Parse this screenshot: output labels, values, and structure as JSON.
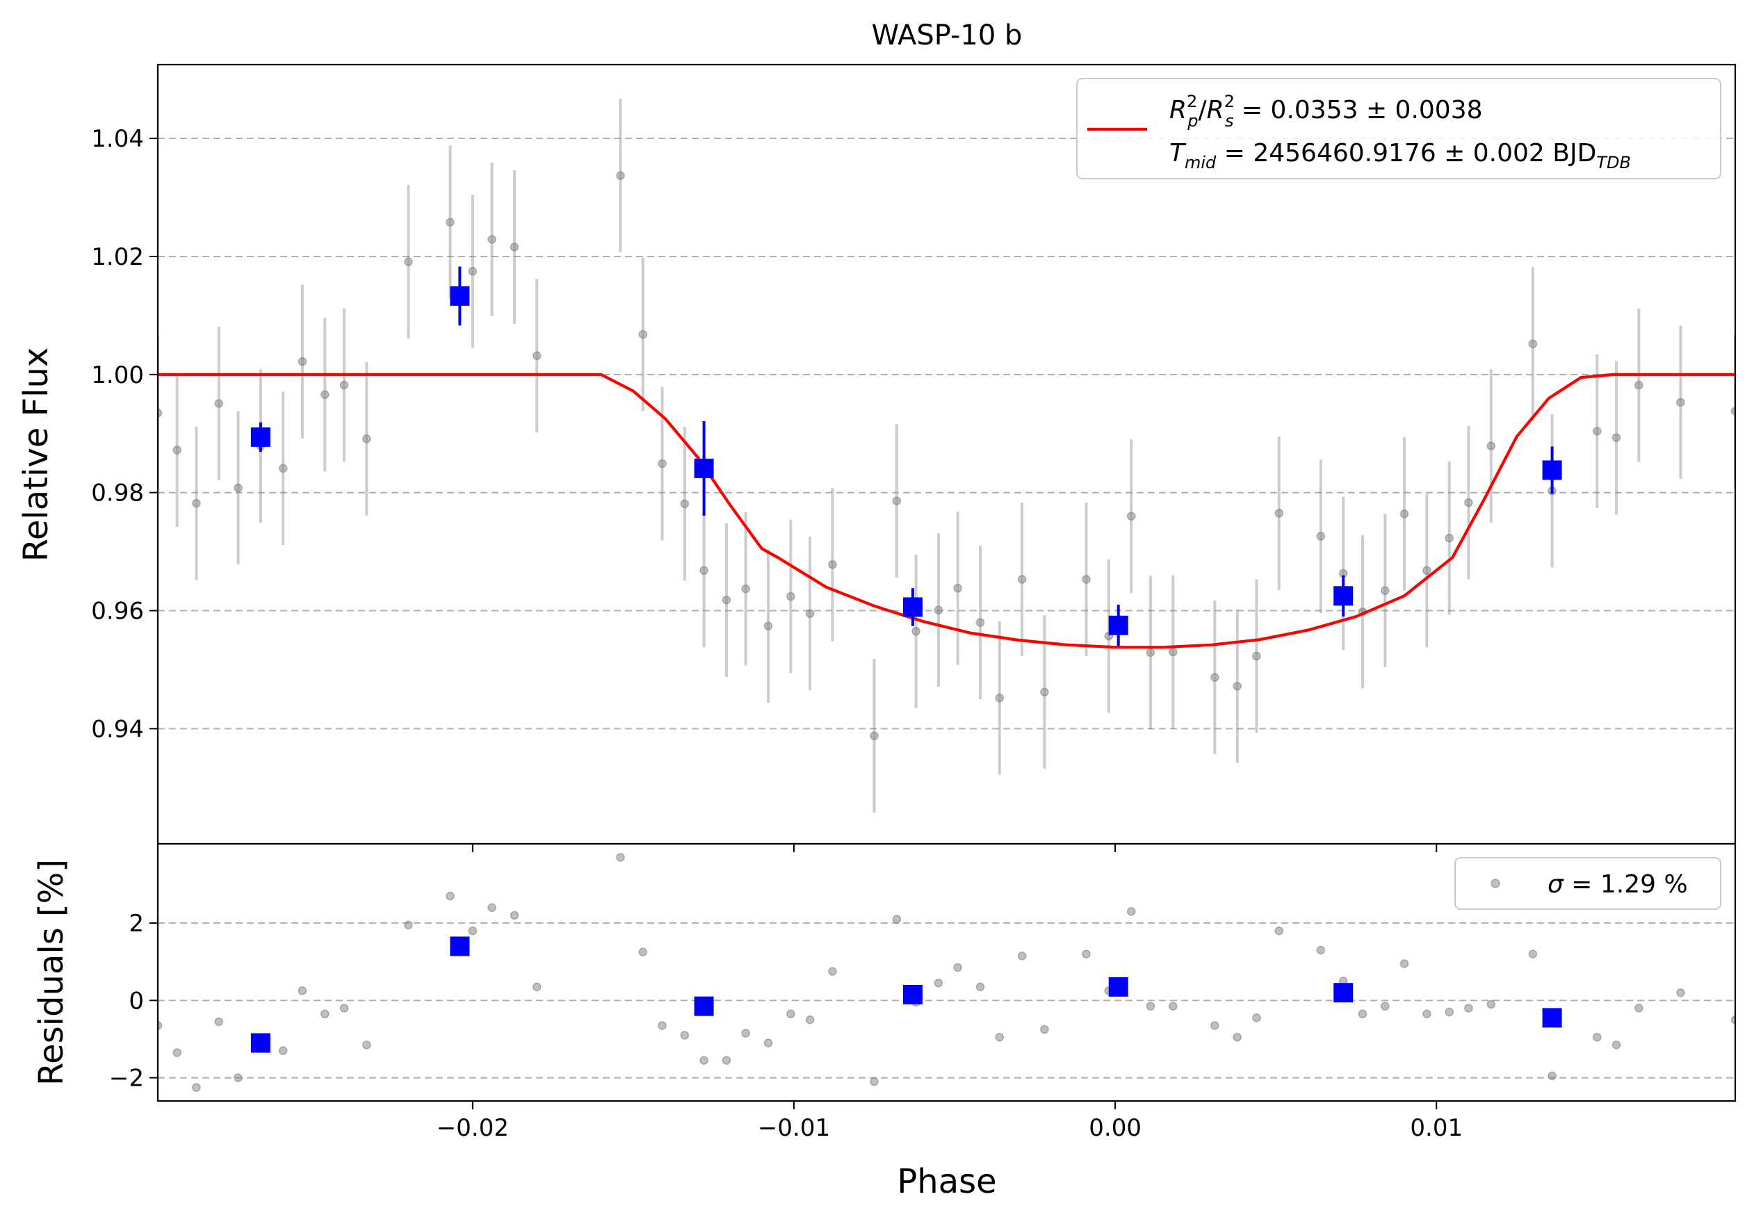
{
  "chart_data": [
    {
      "type": "scatter",
      "panel": "main",
      "title": "WASP-10 b",
      "xlabel": "",
      "ylabel": "Relative Flux",
      "xlim": [
        -0.0298,
        0.0193
      ],
      "ylim": [
        0.9205,
        1.0525
      ],
      "yticks": [
        0.94,
        0.96,
        0.98,
        1.0,
        1.02,
        1.04
      ],
      "ytick_labels": [
        "0.94",
        "0.96",
        "0.98",
        "1.00",
        "1.02",
        "1.04"
      ],
      "grid": "horizontal dashed",
      "legend_placement": "top-right",
      "legend": {
        "rp_base": "R",
        "rp_sup": "2",
        "rp_sub": "p",
        "rs_base": "R",
        "rs_sup": "2",
        "rs_sub": "s",
        "rprs_value": " = 0.0353 ± 0.0038",
        "tmid_base": "T",
        "tmid_sub": "mid",
        "tmid_value": " = 2456460.9176 ± 0.002 BJD",
        "tmid_unit_sub": "TDB"
      },
      "model": {
        "name": "transit model",
        "color": "#ff0000",
        "x": [
          -0.0298,
          -0.016,
          -0.015,
          -0.014,
          -0.013,
          -0.012,
          -0.011,
          -0.0105,
          -0.009,
          -0.0075,
          -0.006,
          -0.0045,
          -0.003,
          -0.0015,
          0.0,
          0.0015,
          0.003,
          0.0045,
          0.006,
          0.0075,
          0.009,
          0.0105,
          0.0115,
          0.0125,
          0.0135,
          0.0145,
          0.0155,
          0.016,
          0.0193
        ],
        "y": [
          1.0,
          1.0,
          0.9972,
          0.9925,
          0.986,
          0.978,
          0.9705,
          0.969,
          0.964,
          0.9608,
          0.9582,
          0.9562,
          0.955,
          0.9542,
          0.9538,
          0.9538,
          0.9542,
          0.9551,
          0.9567,
          0.959,
          0.9625,
          0.969,
          0.979,
          0.9895,
          0.996,
          0.9995,
          1.0,
          1.0,
          1.0
        ]
      },
      "data_points": {
        "name": "data",
        "color": "#808080",
        "x": [
          -0.0298,
          -0.0292,
          -0.0286,
          -0.0279,
          -0.0273,
          -0.0266,
          -0.0259,
          -0.0253,
          -0.0246,
          -0.024,
          -0.0233,
          -0.022,
          -0.0207,
          -0.02,
          -0.0194,
          -0.0187,
          -0.018,
          -0.0154,
          -0.0147,
          -0.0141,
          -0.0134,
          -0.0128,
          -0.0121,
          -0.0115,
          -0.0108,
          -0.0101,
          -0.0095,
          -0.0088,
          -0.0075,
          -0.0068,
          -0.0062,
          -0.0055,
          -0.0049,
          -0.0042,
          -0.0036,
          -0.0029,
          -0.0022,
          -0.0009,
          -0.0002,
          0.0005,
          0.0011,
          0.0018,
          0.0031,
          0.0038,
          0.0044,
          0.0051,
          0.0064,
          0.0071,
          0.0077,
          0.0084,
          0.009,
          0.0097,
          0.0104,
          0.011,
          0.0117,
          0.013,
          0.0136,
          0.015,
          0.0156,
          0.0163,
          0.0176,
          0.0193
        ],
        "y": [
          0.9935,
          0.9872,
          0.9782,
          0.9951,
          0.9808,
          0.9879,
          0.9841,
          1.0022,
          0.9966,
          0.9982,
          0.9891,
          1.0191,
          1.0258,
          1.0175,
          1.0229,
          1.0216,
          1.0032,
          1.0337,
          1.0068,
          0.9849,
          0.9781,
          0.9668,
          0.9618,
          0.9637,
          0.9574,
          0.9624,
          0.9595,
          0.9678,
          0.9388,
          0.9786,
          0.9565,
          0.9601,
          0.9638,
          0.958,
          0.9452,
          0.9653,
          0.9462,
          0.9653,
          0.9557,
          0.976,
          0.9529,
          0.953,
          0.9487,
          0.9472,
          0.9523,
          0.9765,
          0.9726,
          0.9663,
          0.9598,
          0.9634,
          0.9764,
          0.9668,
          0.9723,
          0.9783,
          0.9879,
          1.0052,
          0.9803,
          0.9904,
          0.9893,
          0.9982,
          0.9953,
          0.9938
        ],
        "err": [
          0.013,
          0.013,
          0.013,
          0.013,
          0.013,
          0.013,
          0.013,
          0.013,
          0.013,
          0.013,
          0.013,
          0.013,
          0.013,
          0.013,
          0.013,
          0.013,
          0.013,
          0.013,
          0.013,
          0.013,
          0.013,
          0.013,
          0.013,
          0.013,
          0.013,
          0.013,
          0.013,
          0.013,
          0.013,
          0.013,
          0.013,
          0.013,
          0.013,
          0.013,
          0.013,
          0.013,
          0.013,
          0.013,
          0.013,
          0.013,
          0.013,
          0.013,
          0.013,
          0.013,
          0.013,
          0.013,
          0.013,
          0.013,
          0.013,
          0.013,
          0.013,
          0.013,
          0.013,
          0.013,
          0.013,
          0.013,
          0.013,
          0.013,
          0.013,
          0.013,
          0.013,
          0.013
        ]
      },
      "binned_points": {
        "name": "binned",
        "color": "#0000ff",
        "x": [
          -0.0266,
          -0.0204,
          -0.0128,
          -0.0063,
          0.0001,
          0.0071,
          0.0136
        ],
        "y": [
          0.9894,
          1.0133,
          0.9841,
          0.9606,
          0.9575,
          0.9625,
          0.9838
        ],
        "err": [
          0.0025,
          0.005,
          0.008,
          0.0032,
          0.0035,
          0.0035,
          0.004
        ]
      }
    },
    {
      "type": "scatter",
      "panel": "residuals",
      "xlabel": "Phase",
      "ylabel": "Residuals [%]",
      "xlim": [
        -0.0298,
        0.0193
      ],
      "ylim": [
        -2.6,
        4.05
      ],
      "xticks": [
        -0.02,
        -0.01,
        0.0,
        0.01
      ],
      "xtick_labels": [
        "−0.02",
        "−0.01",
        "0.00",
        "0.01"
      ],
      "yticks": [
        -2,
        0,
        2
      ],
      "ytick_labels": [
        "−2",
        "0",
        "2"
      ],
      "grid": "horizontal dashed",
      "legend_placement": "top-right",
      "legend": {
        "sigma_symbol": "σ",
        "sigma_text": " = 1.29 %"
      },
      "data_points": {
        "name": "residuals",
        "color": "#808080",
        "x": [
          -0.0298,
          -0.0292,
          -0.0286,
          -0.0279,
          -0.0273,
          -0.0266,
          -0.0259,
          -0.0253,
          -0.0246,
          -0.024,
          -0.0233,
          -0.022,
          -0.0207,
          -0.02,
          -0.0194,
          -0.0187,
          -0.018,
          -0.0154,
          -0.0147,
          -0.0141,
          -0.0134,
          -0.0128,
          -0.0121,
          -0.0115,
          -0.0108,
          -0.0101,
          -0.0095,
          -0.0088,
          -0.0075,
          -0.0068,
          -0.0062,
          -0.0055,
          -0.0049,
          -0.0042,
          -0.0036,
          -0.0029,
          -0.0022,
          -0.0009,
          -0.0002,
          0.0005,
          0.0011,
          0.0018,
          0.0031,
          0.0038,
          0.0044,
          0.0051,
          0.0064,
          0.0071,
          0.0077,
          0.0084,
          0.009,
          0.0097,
          0.0104,
          0.011,
          0.0117,
          0.013,
          0.0136,
          0.015,
          0.0156,
          0.0163,
          0.0176,
          0.0193
        ],
        "y": [
          -0.65,
          -1.35,
          -2.25,
          -0.55,
          -2.0,
          -1.15,
          -1.3,
          0.25,
          -0.35,
          -0.2,
          -1.15,
          1.95,
          2.7,
          1.8,
          2.4,
          2.2,
          0.35,
          3.7,
          1.25,
          -0.65,
          -0.9,
          -1.55,
          -1.55,
          -0.85,
          -1.1,
          -0.35,
          -0.5,
          0.75,
          -2.1,
          2.1,
          -0.05,
          0.45,
          0.85,
          0.35,
          -0.95,
          1.15,
          -0.75,
          1.2,
          0.25,
          2.3,
          -0.15,
          -0.15,
          -0.65,
          -0.95,
          -0.45,
          1.8,
          1.3,
          0.5,
          -0.35,
          -0.15,
          0.95,
          -0.35,
          -0.3,
          -0.2,
          -0.1,
          1.2,
          -1.95,
          -0.95,
          -1.15,
          -0.2,
          0.2,
          -0.5
        ]
      },
      "binned_points": {
        "name": "binned residuals",
        "color": "#0000ff",
        "x": [
          -0.0266,
          -0.0204,
          -0.0128,
          -0.0063,
          0.0001,
          0.0071,
          0.0136
        ],
        "y": [
          -1.1,
          1.4,
          -0.15,
          0.15,
          0.35,
          0.2,
          -0.45
        ]
      }
    }
  ]
}
